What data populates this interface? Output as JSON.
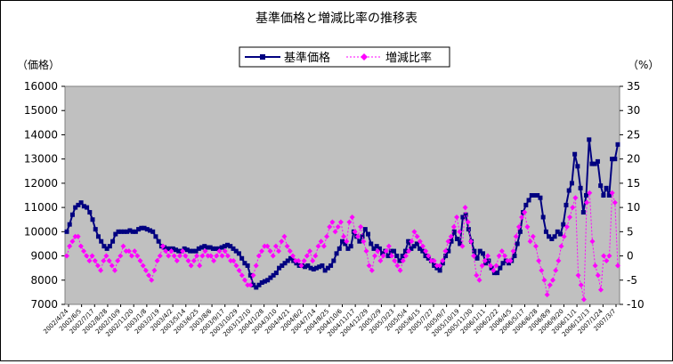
{
  "chart_data": {
    "type": "line",
    "title": "基準価格と増減比率の推移表",
    "ylabel": "（価格）",
    "y2label": "（%）",
    "ylim": [
      7000,
      16000
    ],
    "y_ticks": [
      7000,
      8000,
      9000,
      10000,
      11000,
      12000,
      13000,
      14000,
      15000,
      16000
    ],
    "y2lim": [
      -10,
      35
    ],
    "y2_ticks": [
      -10,
      -5,
      0,
      5,
      10,
      15,
      20,
      25,
      30,
      35
    ],
    "x_tick_labels": [
      "2002/4/24",
      "2002/6/5",
      "2002/7/17",
      "2002/8/28",
      "2002/10/9",
      "2002/11/20",
      "2003/1/8",
      "2003/2/19",
      "2003/4/2",
      "2003/5/14",
      "2003/6/25",
      "2003/8/6",
      "2003/9/17",
      "2003/10/29",
      "2003/12/10",
      "2004/1/28",
      "2004/3/10",
      "2004/4/21",
      "2004/6/2",
      "2004/7/14",
      "2004/8/25",
      "2004/10/6",
      "2004/11/17",
      "2004/12/29",
      "2005/2/9",
      "2005/3/23",
      "2005/5/4",
      "2005/6/15",
      "2005/7/27",
      "2005/9/7",
      "2005/10/19",
      "2005/11/30",
      "2006/1/11",
      "2006/2/22",
      "2006/4/5",
      "2006/5/17",
      "2006/6/28",
      "2006/8/9",
      "2006/9/20",
      "2006/11/1",
      "2006/12/13",
      "2007/1/24",
      "2007/3/7"
    ],
    "legend_position": "top",
    "grid": false,
    "plot_background": "#c0c0c0",
    "series": [
      {
        "name": "基準価格",
        "axis": "left",
        "color": "#000080",
        "marker": "square",
        "values": [
          10000,
          10300,
          10700,
          11000,
          11100,
          11200,
          11050,
          11000,
          10800,
          10500,
          10100,
          9800,
          9600,
          9400,
          9300,
          9400,
          9600,
          9900,
          10000,
          10000,
          10000,
          10000,
          10050,
          10000,
          10000,
          10100,
          10150,
          10150,
          10100,
          10050,
          10000,
          9800,
          9600,
          9400,
          9350,
          9300,
          9300,
          9300,
          9250,
          9200,
          9200,
          9300,
          9250,
          9200,
          9200,
          9200,
          9300,
          9350,
          9400,
          9350,
          9350,
          9300,
          9300,
          9300,
          9350,
          9400,
          9450,
          9400,
          9300,
          9200,
          9100,
          8900,
          8700,
          8600,
          8200,
          7800,
          7700,
          7800,
          7900,
          7950,
          8000,
          8100,
          8200,
          8300,
          8500,
          8600,
          8700,
          8800,
          8900,
          8800,
          8700,
          8600,
          8600,
          8550,
          8600,
          8500,
          8450,
          8500,
          8550,
          8600,
          8400,
          8500,
          8600,
          8800,
          9100,
          9300,
          9600,
          9500,
          9300,
          9400,
          10000,
          9800,
          9600,
          9800,
          10100,
          9900,
          9500,
          9300,
          9400,
          9300,
          9100,
          9200,
          9000,
          9200,
          9200,
          9000,
          8800,
          9000,
          9200,
          9600,
          9300,
          9400,
          9500,
          9300,
          9200,
          9000,
          8900,
          8800,
          8600,
          8500,
          8400,
          8700,
          9000,
          9200,
          9600,
          10000,
          9700,
          9500,
          10600,
          10700,
          10100,
          9600,
          9200,
          8900,
          9200,
          9100,
          8700,
          8800,
          8500,
          8300,
          8300,
          8500,
          8700,
          8800,
          8700,
          8800,
          9000,
          9500,
          10000,
          10800,
          11100,
          11300,
          11500,
          11500,
          11500,
          11400,
          10600,
          10000,
          9800,
          9700,
          9800,
          10000,
          9900,
          10300,
          11100,
          11700,
          12000,
          13200,
          12700,
          11800,
          10800,
          11500,
          13800,
          12800,
          12800,
          12900,
          11900,
          11500,
          11800,
          11500,
          13000,
          13000,
          13600
        ]
      },
      {
        "name": "増減比率",
        "axis": "right",
        "color": "#ff00ff",
        "marker": "diamond",
        "values": [
          0,
          2,
          3,
          4,
          4,
          2,
          1,
          0,
          -1,
          0,
          -1,
          -2,
          -3,
          -1,
          0,
          -1,
          -2,
          -3,
          -1,
          0,
          2,
          1,
          1,
          0,
          1,
          0,
          -1,
          -2,
          -3,
          -4,
          -5,
          -3,
          -1,
          0,
          2,
          1,
          0,
          1,
          0,
          -1,
          0,
          1,
          0,
          -1,
          -2,
          -1,
          0,
          -2,
          0,
          1,
          0,
          0,
          -1,
          0,
          1,
          0,
          1,
          0,
          -1,
          -1,
          -2,
          -3,
          -4,
          -5,
          -6,
          -6,
          -4,
          -2,
          0,
          1,
          2,
          2,
          1,
          0,
          2,
          1,
          3,
          4,
          2,
          1,
          0,
          -1,
          -1,
          -2,
          -1,
          0,
          1,
          -1,
          0,
          2,
          3,
          2,
          4,
          6,
          7,
          5,
          6,
          7,
          4,
          3,
          7,
          8,
          5,
          4,
          6,
          3,
          1,
          -2,
          -3,
          0,
          1,
          -1,
          0,
          1,
          2,
          0,
          -1,
          -2,
          -3,
          -1,
          0,
          1,
          3,
          5,
          4,
          3,
          2,
          1,
          0,
          -1,
          -1,
          -2,
          -2,
          -1,
          1,
          3,
          4,
          6,
          8,
          5,
          2,
          10,
          7,
          3,
          0,
          -4,
          -5,
          -2,
          -1,
          0,
          -2,
          -3,
          -2,
          0,
          1,
          0,
          -1,
          -1,
          1,
          4,
          6,
          8,
          9,
          6,
          3,
          4,
          2,
          -1,
          -3,
          -5,
          -8,
          -6,
          -5,
          -3,
          -1,
          2,
          4,
          6,
          8,
          10,
          12,
          -4,
          -6,
          -9,
          11,
          13,
          3,
          -2,
          -4,
          -7,
          0,
          -1,
          0,
          13,
          11,
          -2
        ]
      }
    ]
  }
}
